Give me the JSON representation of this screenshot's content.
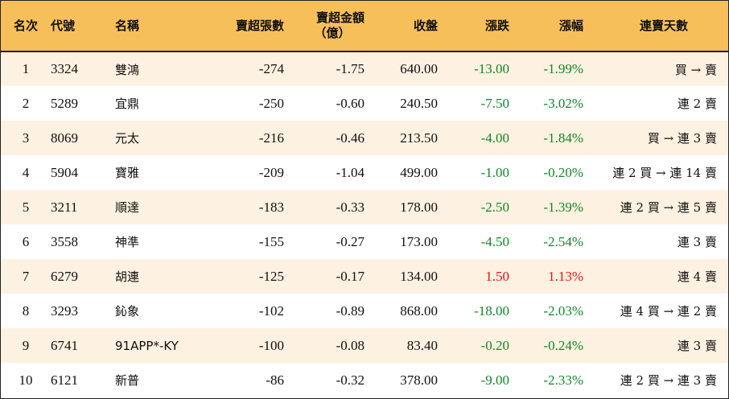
{
  "headers": {
    "rank": "名次",
    "code": "代號",
    "name": "名稱",
    "net_sell_lots": "賣超張數",
    "net_sell_amount_line1": "賣超金額",
    "net_sell_amount_line2": "（億）",
    "close": "收盤",
    "change": "漲跌",
    "change_pct": "漲幅",
    "streak": "連賣天數"
  },
  "colors": {
    "header_bg": "#f7bf5a",
    "odd_row_bg": "#fdf1e1",
    "down": "#11882a",
    "up": "#e8121a"
  },
  "rows": [
    {
      "rank": "1",
      "code": "3324",
      "name": "雙鴻",
      "net_sell_lots": "-274",
      "net_sell_amount": "-1.75",
      "close": "640.00",
      "change": "-13.00",
      "change_pct": "-1.99%",
      "streak": "買 → 賣",
      "dir": "down"
    },
    {
      "rank": "2",
      "code": "5289",
      "name": "宜鼎",
      "net_sell_lots": "-250",
      "net_sell_amount": "-0.60",
      "close": "240.50",
      "change": "-7.50",
      "change_pct": "-3.02%",
      "streak": "連 2 賣",
      "dir": "down"
    },
    {
      "rank": "3",
      "code": "8069",
      "name": "元太",
      "net_sell_lots": "-216",
      "net_sell_amount": "-0.46",
      "close": "213.50",
      "change": "-4.00",
      "change_pct": "-1.84%",
      "streak": "買 → 連 3 賣",
      "dir": "down"
    },
    {
      "rank": "4",
      "code": "5904",
      "name": "寶雅",
      "net_sell_lots": "-209",
      "net_sell_amount": "-1.04",
      "close": "499.00",
      "change": "-1.00",
      "change_pct": "-0.20%",
      "streak": "連 2 買 → 連 14 賣",
      "dir": "down"
    },
    {
      "rank": "5",
      "code": "3211",
      "name": "順達",
      "net_sell_lots": "-183",
      "net_sell_amount": "-0.33",
      "close": "178.00",
      "change": "-2.50",
      "change_pct": "-1.39%",
      "streak": "連 2 買 → 連 5 賣",
      "dir": "down"
    },
    {
      "rank": "6",
      "code": "3558",
      "name": "神準",
      "net_sell_lots": "-155",
      "net_sell_amount": "-0.27",
      "close": "173.00",
      "change": "-4.50",
      "change_pct": "-2.54%",
      "streak": "連 3 賣",
      "dir": "down"
    },
    {
      "rank": "7",
      "code": "6279",
      "name": "胡連",
      "net_sell_lots": "-125",
      "net_sell_amount": "-0.17",
      "close": "134.00",
      "change": "1.50",
      "change_pct": "1.13%",
      "streak": "連 4 賣",
      "dir": "up"
    },
    {
      "rank": "8",
      "code": "3293",
      "name": "鈊象",
      "net_sell_lots": "-102",
      "net_sell_amount": "-0.89",
      "close": "868.00",
      "change": "-18.00",
      "change_pct": "-2.03%",
      "streak": "連 4 買 → 連 2 賣",
      "dir": "down"
    },
    {
      "rank": "9",
      "code": "6741",
      "name": "91APP*-KY",
      "net_sell_lots": "-100",
      "net_sell_amount": "-0.08",
      "close": "83.40",
      "change": "-0.20",
      "change_pct": "-0.24%",
      "streak": "連 3 賣",
      "dir": "down"
    },
    {
      "rank": "10",
      "code": "6121",
      "name": "新普",
      "net_sell_lots": "-86",
      "net_sell_amount": "-0.32",
      "close": "378.00",
      "change": "-9.00",
      "change_pct": "-2.33%",
      "streak": "連 2 買 → 連 3 賣",
      "dir": "down"
    }
  ]
}
